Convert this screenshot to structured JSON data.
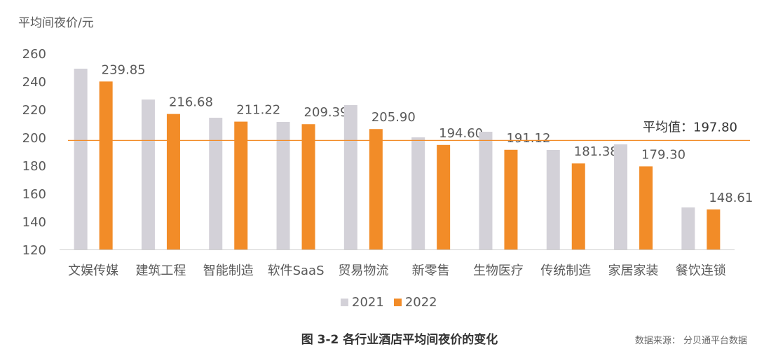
{
  "y_unit_label": "平均间夜价/元",
  "caption": "图 3-2 各行业酒店平均间夜价的变化",
  "source": "数据来源： 分贝通平台数据",
  "colors": {
    "s2021": "#d3d1d8",
    "s2022": "#f28c28",
    "avgline": "#f28c28",
    "axis": "#cfcfcf",
    "text": "#595959"
  },
  "chart_data": {
    "type": "bar",
    "categories": [
      "文娱传媒",
      "建筑工程",
      "智能制造",
      "软件SaaS",
      "贸易物流",
      "新零售",
      "生物医疗",
      "传统制造",
      "家居家装",
      "餐饮连锁"
    ],
    "series": [
      {
        "name": "2021",
        "values": [
          249,
          227,
          214,
          211,
          223,
          200,
          204,
          191,
          195,
          150
        ]
      },
      {
        "name": "2022",
        "values": [
          239.85,
          216.68,
          211.22,
          209.39,
          205.9,
          194.6,
          191.12,
          181.38,
          179.3,
          148.61
        ]
      }
    ],
    "data_labels": [
      "239.85",
      "216.68",
      "211.22",
      "209.39",
      "205.90",
      "194.60",
      "191.12",
      "181.38",
      "179.30",
      "148.61"
    ],
    "reference_line": {
      "value": 197.8,
      "label": "平均值：197.80"
    },
    "ylim": [
      120,
      260
    ],
    "yticks": [
      120,
      140,
      160,
      180,
      200,
      220,
      240,
      260
    ],
    "title": "",
    "xlabel": "",
    "ylabel": "平均间夜价/元",
    "legend_position": "bottom",
    "grid": false
  }
}
